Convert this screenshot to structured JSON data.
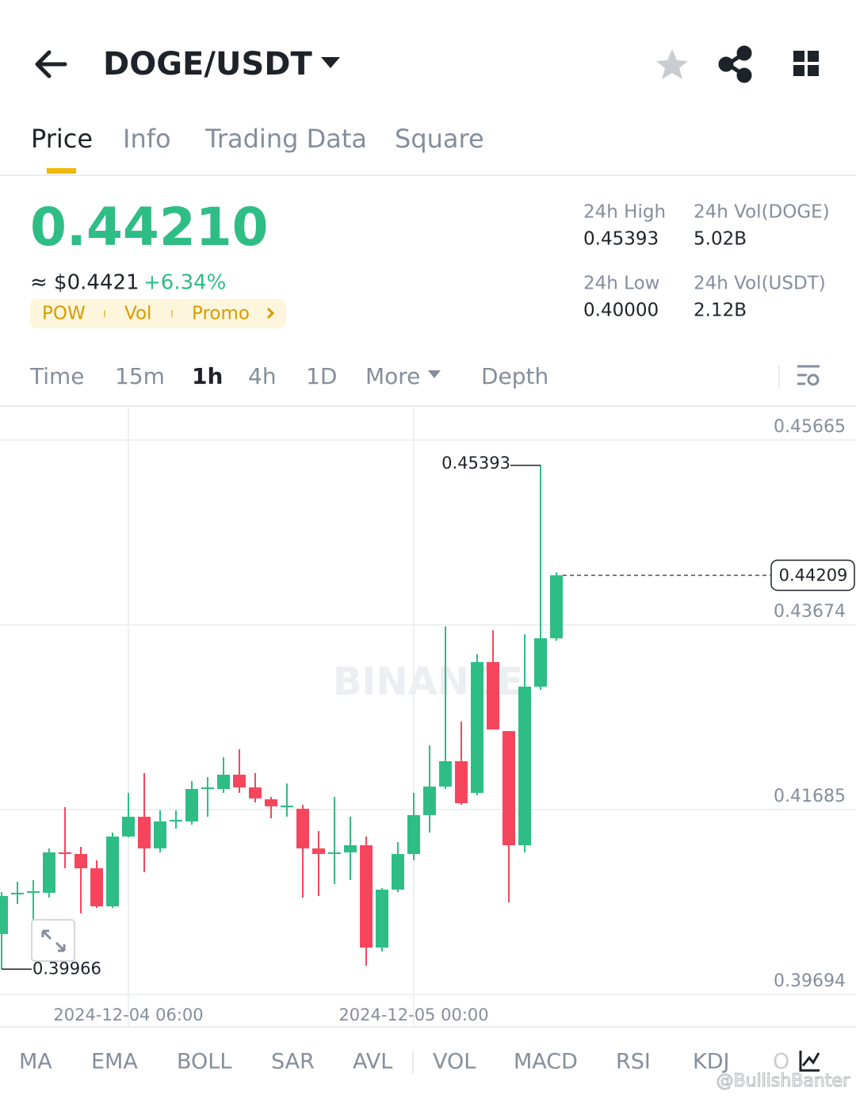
{
  "header": {
    "pair": "DOGE/USDT"
  },
  "tabs": [
    "Price",
    "Info",
    "Trading Data",
    "Square"
  ],
  "price": {
    "last": "0.44210",
    "usd": "≈ $0.4421",
    "change": "+6.34%",
    "tags": [
      "POW",
      "Vol",
      "Promo"
    ]
  },
  "stats": [
    {
      "label": "24h High",
      "value": "0.45393"
    },
    {
      "label": "24h Vol(DOGE)",
      "value": "5.02B"
    },
    {
      "label": "24h Low",
      "value": "0.40000"
    },
    {
      "label": "24h Vol(USDT)",
      "value": "2.12B"
    }
  ],
  "intervals": [
    "Time",
    "15m",
    "1h",
    "4h",
    "1D",
    "More",
    "Depth"
  ],
  "indicators": [
    "MA",
    "EMA",
    "BOLL",
    "SAR",
    "AVL",
    "VOL",
    "MACD",
    "RSI",
    "KDJ",
    "O"
  ],
  "watermark": "@BullishBanter",
  "chart_data": {
    "type": "candlestick",
    "watermark": "BINANCE",
    "categories": [
      null,
      null,
      null,
      null,
      null,
      null,
      null,
      null,
      "2024-12-04 06:00",
      null,
      null,
      null,
      null,
      null,
      null,
      null,
      null,
      null,
      null,
      null,
      null,
      null,
      null,
      null,
      null,
      null,
      "2024-12-05 00:00",
      null,
      null,
      null,
      null,
      null,
      null,
      null,
      null,
      null
    ],
    "open": [
      0.40345,
      0.40772,
      0.40789,
      0.40789,
      0.41224,
      0.41207,
      0.41053,
      0.40643,
      0.41395,
      0.41608,
      0.41267,
      0.41557,
      0.41557,
      0.41907,
      0.41907,
      0.42061,
      0.41924,
      0.41796,
      0.41711,
      0.41694,
      0.41267,
      0.41207,
      0.41224,
      0.41301,
      0.40199,
      0.40823,
      0.41207,
      0.41626,
      0.41933,
      0.42206,
      0.41865,
      0.43274,
      0.42531,
      0.41301,
      0.43009,
      0.4353
    ],
    "high": [
      0.40797,
      0.40908,
      0.40925,
      0.41267,
      0.41711,
      0.41284,
      0.41139,
      0.41438,
      0.41865,
      0.42078,
      0.41677,
      0.41677,
      0.41993,
      0.42035,
      0.42249,
      0.42334,
      0.42078,
      0.41822,
      0.41967,
      0.41737,
      0.41455,
      0.41822,
      0.41608,
      0.41395,
      0.4084,
      0.41335,
      0.41865,
      0.42377,
      0.43658,
      0.42633,
      0.43359,
      0.43615,
      0.42531,
      0.43573,
      0.45393,
      0.44239
    ],
    "low": [
      0.39966,
      0.40669,
      0.40498,
      0.40737,
      0.41053,
      0.40567,
      0.40626,
      0.40626,
      0.41386,
      0.41011,
      0.41224,
      0.4148,
      0.41523,
      0.41608,
      0.41865,
      0.41865,
      0.41762,
      0.41591,
      0.41608,
      0.40737,
      0.40754,
      0.40883,
      0.40925,
      0.40003,
      0.40157,
      0.40797,
      0.41139,
      0.41438,
      0.41907,
      0.41737,
      0.41839,
      0.42548,
      0.40686,
      0.41224,
      0.42975,
      0.43504
    ],
    "close": [
      0.40754,
      0.40789,
      0.40806,
      0.41224,
      0.41207,
      0.41053,
      0.40643,
      0.41395,
      0.41608,
      0.41267,
      0.41557,
      0.41574,
      0.41907,
      0.41924,
      0.42061,
      0.41924,
      0.41805,
      0.4172,
      0.41728,
      0.41267,
      0.41207,
      0.41224,
      0.41301,
      0.40199,
      0.40823,
      0.41207,
      0.41626,
      0.41933,
      0.42206,
      0.41754,
      0.43274,
      0.42548,
      0.41301,
      0.43009,
      0.4353,
      0.44209
    ],
    "up_color": "#2ebd85",
    "down_color": "#f6465d",
    "ylim": [
      0.39627,
      0.46032
    ],
    "yticks": [
      0.45665,
      0.43674,
      0.41685,
      0.39694
    ],
    "grid": true
  }
}
